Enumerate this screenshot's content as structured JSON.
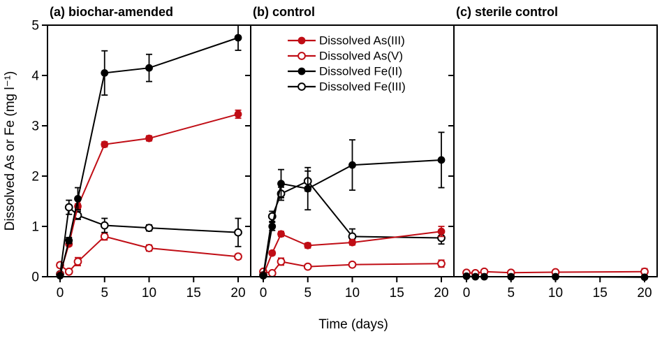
{
  "figure": {
    "y_axis_label": "Dissolved As or Fe (mg l⁻¹)",
    "x_axis_label": "Time (days)",
    "accent_red": "#c00d15",
    "accent_black": "#000000"
  },
  "legend": {
    "items": [
      {
        "label": "Dissolved As(III)",
        "color": "#c00d15",
        "marker": "filled-circle"
      },
      {
        "label": "Dissolved As(V)",
        "color": "#c00d15",
        "marker": "open-circle"
      },
      {
        "label": "Dissolved Fe(II)",
        "color": "#000000",
        "marker": "filled-circle"
      },
      {
        "label": "Dissolved Fe(III)",
        "color": "#000000",
        "marker": "open-circle"
      }
    ]
  },
  "chart_data": {
    "type": "line",
    "title": "",
    "xlabel": "Time (days)",
    "y_label": "Dissolved As or Fe (mg l⁻¹)",
    "x_label": "Time (days)",
    "xlim": [
      -1.4,
      21.4
    ],
    "ylim": [
      0,
      5
    ],
    "x_ticks": [
      0,
      5,
      10,
      15,
      20
    ],
    "x_tick_labels": [
      "0",
      "5",
      "10",
      "15",
      "20"
    ],
    "y_ticks": [
      0,
      1,
      2,
      3,
      4,
      5
    ],
    "y_tick_labels": [
      "0",
      "1",
      "2",
      "3",
      "4",
      "5"
    ],
    "grid": false,
    "legend_position": "inside panel (b), upper area",
    "days": [
      0,
      1,
      2,
      5,
      10,
      20
    ],
    "panels": [
      {
        "id": "a",
        "title": "(a) biochar-amended",
        "series": [
          {
            "name": "Dissolved As(V)",
            "color": "#c00d15",
            "marker": "open-circle",
            "values": [
              0.23,
              0.1,
              0.3,
              0.8,
              0.57,
              0.4
            ],
            "errors": [
              0.05,
              0.03,
              0.08,
              0.07,
              0.06,
              0.05
            ]
          },
          {
            "name": "Dissolved Fe(III)",
            "color": "#000000",
            "marker": "open-circle",
            "values": [
              0.05,
              1.38,
              1.22,
              1.02,
              0.97,
              0.88
            ],
            "errors": [
              0.02,
              0.14,
              0.08,
              0.14,
              0.06,
              0.28
            ]
          },
          {
            "name": "Dissolved As(III)",
            "color": "#c00d15",
            "marker": "filled-circle",
            "values": [
              0.05,
              0.65,
              1.4,
              2.63,
              2.75,
              3.23
            ],
            "errors": [
              0.02,
              0.04,
              0.05,
              0.05,
              0.05,
              0.08
            ]
          },
          {
            "name": "Dissolved Fe(II)",
            "color": "#000000",
            "marker": "filled-circle",
            "values": [
              0.02,
              0.72,
              1.55,
              4.05,
              4.15,
              4.75
            ],
            "errors": [
              0.02,
              0.06,
              0.22,
              0.44,
              0.27,
              0.25
            ]
          }
        ]
      },
      {
        "id": "b",
        "title": "(b) control",
        "has_legend": true,
        "series": [
          {
            "name": "Dissolved As(V)",
            "color": "#c00d15",
            "marker": "open-circle",
            "values": [
              0.1,
              0.07,
              0.3,
              0.2,
              0.24,
              0.26
            ],
            "errors": [
              0.03,
              0.02,
              0.07,
              0.04,
              0.03,
              0.07
            ]
          },
          {
            "name": "Dissolved Fe(III)",
            "color": "#000000",
            "marker": "open-circle",
            "values": [
              0.03,
              1.2,
              1.65,
              1.9,
              0.8,
              0.77
            ],
            "errors": [
              0.02,
              0.1,
              0.13,
              0.2,
              0.15,
              0.12
            ]
          },
          {
            "name": "Dissolved As(III)",
            "color": "#c00d15",
            "marker": "filled-circle",
            "values": [
              0.03,
              0.47,
              0.85,
              0.62,
              0.68,
              0.9
            ],
            "errors": [
              0.02,
              0.04,
              0.05,
              0.05,
              0.05,
              0.1
            ]
          },
          {
            "name": "Dissolved Fe(II)",
            "color": "#000000",
            "marker": "filled-circle",
            "values": [
              0.02,
              1.0,
              1.85,
              1.75,
              2.22,
              2.32
            ],
            "errors": [
              0.02,
              0.08,
              0.28,
              0.42,
              0.5,
              0.55
            ]
          }
        ]
      },
      {
        "id": "c",
        "title": "(c) sterile control",
        "series": [
          {
            "name": "Dissolved As(V)",
            "color": "#c00d15",
            "marker": "open-circle",
            "values": [
              0.08,
              0.07,
              0.1,
              0.08,
              0.09,
              0.1
            ],
            "errors": [
              0.02,
              0.02,
              0.03,
              0.02,
              0.02,
              0.06
            ]
          },
          {
            "name": "Dissolved Fe(II)",
            "color": "#000000",
            "marker": "filled-circle",
            "values": [
              0.01,
              0.0,
              0.0,
              0.0,
              0.0,
              -0.01
            ],
            "errors": [
              0.01,
              0.01,
              0.01,
              0.01,
              0.01,
              0.02
            ]
          }
        ]
      }
    ]
  }
}
